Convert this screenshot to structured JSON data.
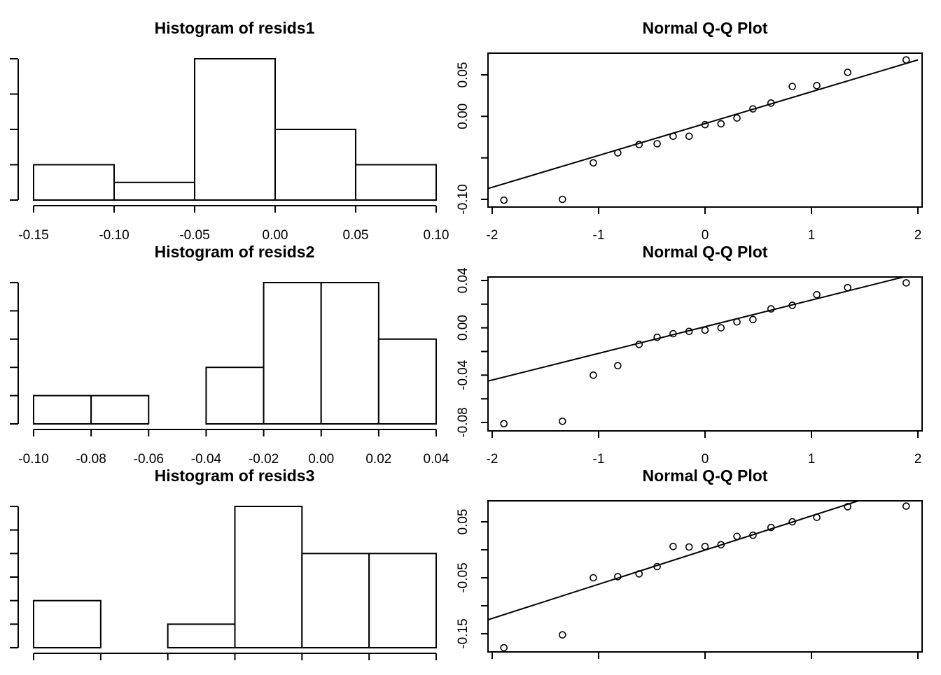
{
  "chart_data": [
    {
      "type": "bar",
      "title": "Histogram of resids1",
      "bins": [
        [
          -0.15,
          -0.1
        ],
        [
          -0.1,
          -0.05
        ],
        [
          -0.05,
          0.0
        ],
        [
          0.0,
          0.05
        ],
        [
          0.05,
          0.1
        ]
      ],
      "values": [
        2,
        1,
        8,
        4,
        2
      ],
      "xlim": [
        -0.15,
        0.1
      ],
      "ylim": [
        0,
        8
      ],
      "xticks": [
        -0.15,
        -0.1,
        -0.05,
        0.0,
        0.05,
        0.1
      ],
      "xtick_labels": [
        "-0.15",
        "-0.10",
        "-0.05",
        "0.00",
        "0.05",
        "0.10"
      ],
      "yticks": [
        0,
        2,
        4,
        6,
        8
      ],
      "show_xtick_labels": true
    },
    {
      "type": "scatter",
      "title": "Normal Q-Q Plot",
      "x": [
        -1.89,
        -1.34,
        -1.05,
        -0.82,
        -0.62,
        -0.45,
        -0.3,
        -0.15,
        0.0,
        0.15,
        0.3,
        0.45,
        0.62,
        0.82,
        1.05,
        1.34,
        1.89
      ],
      "y": [
        -0.101,
        -0.1,
        -0.056,
        -0.044,
        -0.034,
        -0.033,
        -0.024,
        -0.024,
        -0.01,
        -0.009,
        -0.002,
        0.009,
        0.016,
        0.036,
        0.037,
        0.053,
        0.068
      ],
      "line": [
        [
          -2,
          -0.087
        ],
        [
          2,
          0.068
        ]
      ],
      "xlim": [
        -2,
        2
      ],
      "ylim": [
        -0.102,
        0.075
      ],
      "xticks": [
        -2,
        -1,
        0,
        1,
        2
      ],
      "xtick_labels": [
        "-2",
        "-1",
        "0",
        "1",
        "2"
      ],
      "yticks": [
        -0.1,
        -0.05,
        0.0,
        0.05
      ],
      "ytick_labels": [
        "-0.10",
        "",
        "0.00",
        "0.05"
      ],
      "show_xtick_labels": true
    },
    {
      "type": "bar",
      "title": "Histogram of resids2",
      "bins": [
        [
          -0.1,
          -0.08
        ],
        [
          -0.08,
          -0.06
        ],
        [
          -0.06,
          -0.04
        ],
        [
          -0.04,
          -0.02
        ],
        [
          -0.02,
          0.0
        ],
        [
          0.0,
          0.02
        ],
        [
          0.02,
          0.04
        ]
      ],
      "values": [
        1,
        1,
        0,
        2,
        5,
        5,
        3
      ],
      "xlim": [
        -0.1,
        0.04
      ],
      "ylim": [
        0,
        5
      ],
      "xticks": [
        -0.1,
        -0.08,
        -0.06,
        -0.04,
        -0.02,
        0.0,
        0.02,
        0.04
      ],
      "xtick_labels": [
        "-0.10",
        "-0.08",
        "-0.06",
        "-0.04",
        "-0.02",
        "0.00",
        "0.02",
        "0.04"
      ],
      "yticks": [
        0,
        1,
        2,
        3,
        4,
        5
      ],
      "show_xtick_labels": true
    },
    {
      "type": "scatter",
      "title": "Normal Q-Q Plot",
      "x": [
        -1.89,
        -1.34,
        -1.05,
        -0.82,
        -0.62,
        -0.45,
        -0.3,
        -0.15,
        0.0,
        0.15,
        0.3,
        0.45,
        0.62,
        0.82,
        1.05,
        1.34,
        1.89
      ],
      "y": [
        -0.081,
        -0.079,
        -0.04,
        -0.032,
        -0.014,
        -0.008,
        -0.005,
        -0.003,
        -0.002,
        0.0,
        0.005,
        0.007,
        0.016,
        0.019,
        0.028,
        0.034,
        0.038
      ],
      "line": [
        [
          -2,
          -0.045
        ],
        [
          2,
          0.046
        ]
      ],
      "xlim": [
        -2,
        2
      ],
      "ylim": [
        -0.083,
        0.044
      ],
      "xticks": [
        -2,
        -1,
        0,
        1,
        2
      ],
      "xtick_labels": [
        "-2",
        "-1",
        "0",
        "1",
        "2"
      ],
      "yticks": [
        -0.08,
        -0.06,
        -0.04,
        -0.02,
        0.0,
        0.02,
        0.04
      ],
      "ytick_labels": [
        "-0.08",
        "",
        "-0.04",
        "",
        "0.00",
        "",
        "0.04"
      ],
      "show_xtick_labels": true
    },
    {
      "type": "bar",
      "title": "Histogram of resids3",
      "bins": [
        [
          0,
          1
        ],
        [
          1,
          2
        ],
        [
          2,
          3
        ],
        [
          3,
          4
        ],
        [
          4,
          5
        ],
        [
          5,
          6
        ]
      ],
      "values": [
        2,
        0,
        1,
        6,
        4,
        4
      ],
      "xlim": [
        0,
        6
      ],
      "ylim": [
        0,
        6
      ],
      "xticks": [
        0,
        1,
        2,
        3,
        4,
        5,
        6
      ],
      "yticks": [
        0,
        1,
        2,
        3,
        4,
        5,
        6
      ],
      "show_xtick_labels": false
    },
    {
      "type": "scatter",
      "title": "Normal Q-Q Plot",
      "x": [
        -1.89,
        -1.34,
        -1.05,
        -0.82,
        -0.62,
        -0.45,
        -0.3,
        -0.15,
        0.0,
        0.15,
        0.3,
        0.45,
        0.62,
        0.82,
        1.05,
        1.34,
        1.89
      ],
      "y": [
        -0.175,
        -0.152,
        -0.05,
        -0.048,
        -0.043,
        -0.03,
        0.006,
        0.005,
        0.006,
        0.009,
        0.024,
        0.026,
        0.04,
        0.05,
        0.058,
        0.077,
        0.078
      ],
      "line": [
        [
          -2,
          -0.125
        ],
        [
          1.45,
          0.088
        ]
      ],
      "xlim": [
        -2,
        2
      ],
      "ylim": [
        -0.175,
        0.088
      ],
      "xticks": [
        -2,
        -1,
        0,
        1,
        2
      ],
      "yticks": [
        -0.15,
        -0.1,
        -0.05,
        0.0,
        0.05
      ],
      "ytick_labels": [
        "-0.15",
        "",
        "-0.05",
        "",
        "0.05"
      ],
      "show_xtick_labels": false
    }
  ]
}
